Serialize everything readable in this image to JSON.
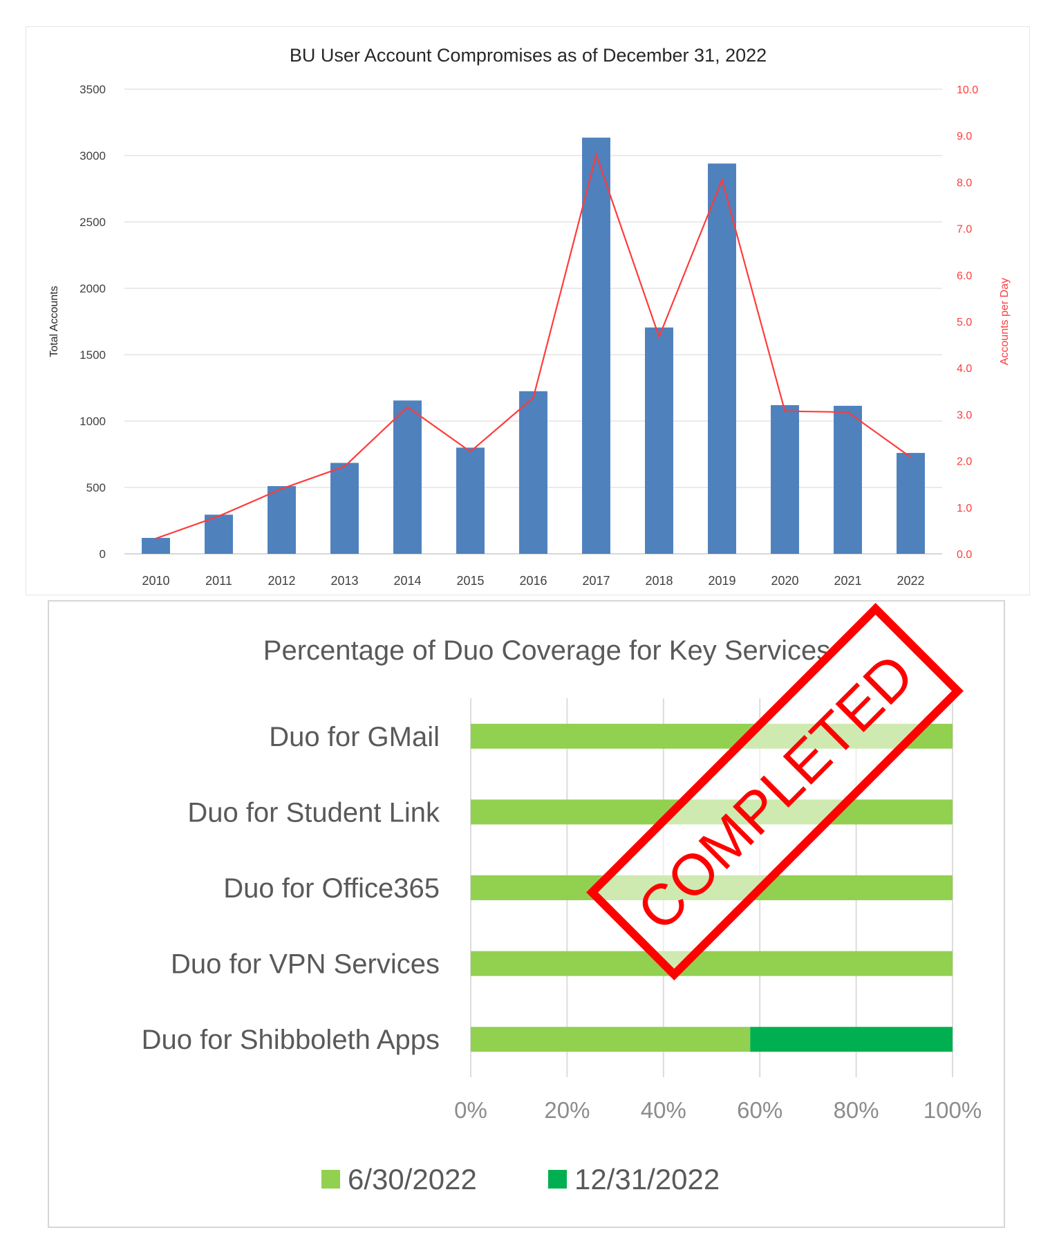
{
  "chart_data": [
    {
      "type": "bar",
      "title": "BU User Account Compromises as of December 31, 2022",
      "categories": [
        "2010",
        "2011",
        "2012",
        "2013",
        "2014",
        "2015",
        "2016",
        "2017",
        "2018",
        "2019",
        "2020",
        "2021",
        "2022"
      ],
      "y_axis": {
        "label": "Total Accounts",
        "range": [
          0,
          3500
        ],
        "ticks": [
          "0",
          "500",
          "1000",
          "1500",
          "2000",
          "2500",
          "3000",
          "3500"
        ]
      },
      "y2_axis": {
        "label": "Accounts per Day",
        "range": [
          0,
          10
        ],
        "ticks": [
          "0.0",
          "1.0",
          "2.0",
          "3.0",
          "4.0",
          "5.0",
          "6.0",
          "7.0",
          "8.0",
          "9.0",
          "10.0"
        ]
      },
      "series": [
        {
          "type": "bar",
          "axis": "y",
          "color": "#4f81bd",
          "values": [
            120,
            295,
            510,
            685,
            1155,
            800,
            1225,
            3135,
            1705,
            2940,
            1120,
            1115,
            760
          ]
        },
        {
          "type": "line",
          "axis": "y2",
          "color": "#ff3b3b",
          "values": [
            0.33,
            0.81,
            1.4,
            1.88,
            3.16,
            2.2,
            3.36,
            8.59,
            4.67,
            8.05,
            3.07,
            3.05,
            2.08
          ]
        }
      ],
      "grid": true,
      "legend": "none"
    },
    {
      "type": "bar",
      "orientation": "horizontal",
      "stacked": true,
      "title": "Percentage of Duo Coverage for Key Services",
      "categories": [
        "Duo for GMail",
        "Duo for Student Link",
        "Duo for Office365",
        "Duo for VPN Services",
        "Duo for Shibboleth Apps"
      ],
      "x_axis": {
        "range": [
          0,
          100
        ],
        "ticks": [
          "0%",
          "20%",
          "40%",
          "60%",
          "80%",
          "100%"
        ]
      },
      "series": [
        {
          "name": "6/30/2022",
          "color": "#92d050",
          "values": [
            100,
            100,
            100,
            100,
            58
          ]
        },
        {
          "name": "12/31/2022",
          "color": "#00b050",
          "values": [
            0,
            0,
            0,
            0,
            42
          ]
        }
      ],
      "grid": true,
      "legend": "bottom",
      "stamp": {
        "text": "COMPLETED",
        "color": "#ff0000"
      }
    }
  ]
}
